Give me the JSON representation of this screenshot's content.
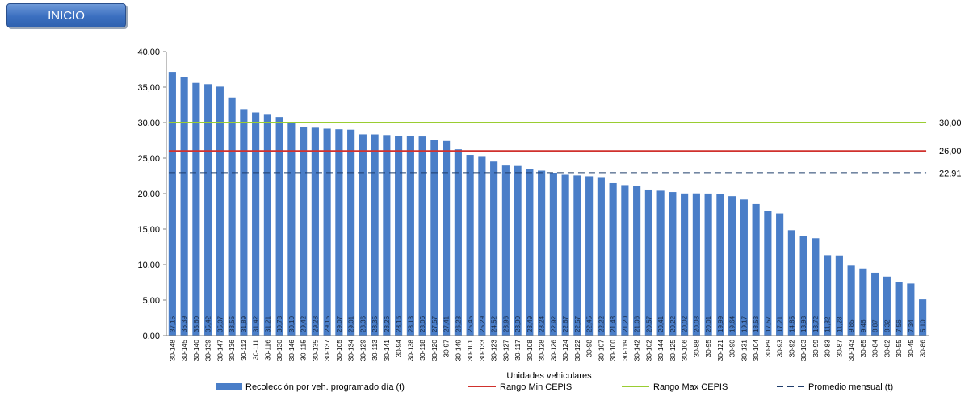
{
  "header": {
    "inicio_label": "INICIO"
  },
  "colors": {
    "bar": "#4a7ec8",
    "min": "#d0312d",
    "max": "#9acd32",
    "avg": "#1f3d6b"
  },
  "chart_data": {
    "type": "bar",
    "xlabel": "Unidades vehiculares",
    "ylim": [
      0,
      40
    ],
    "yticks": [
      "0,00",
      "5,00",
      "10,00",
      "15,00",
      "20,00",
      "25,00",
      "30,00",
      "35,00",
      "40,00"
    ],
    "categories": [
      "30-148",
      "30-145",
      "30-140",
      "30-139",
      "30-147",
      "30-136",
      "30-112",
      "30-111",
      "30-116",
      "30-130",
      "30-146",
      "30-115",
      "30-135",
      "30-137",
      "30-105",
      "30-134",
      "30-129",
      "30-113",
      "30-141",
      "30-94",
      "30-138",
      "30-118",
      "30-120",
      "30-97",
      "30-149",
      "30-101",
      "30-133",
      "30-123",
      "30-127",
      "30-117",
      "30-108",
      "30-128",
      "30-126",
      "30-124",
      "30-122",
      "30-98",
      "30-107",
      "30-100",
      "30-119",
      "30-142",
      "30-102",
      "30-144",
      "30-125",
      "30-106",
      "30-88",
      "30-95",
      "30-121",
      "30-90",
      "30-131",
      "30-104",
      "30-89",
      "30-93",
      "30-92",
      "30-103",
      "30-99",
      "30-83",
      "30-87",
      "30-143",
      "30-85",
      "30-84",
      "30-82",
      "30-55",
      "30-45",
      "30-86"
    ],
    "series": [
      {
        "name": "Recolección por veh. programado día (t)",
        "values": [
          37.15,
          36.39,
          35.6,
          35.42,
          35.07,
          33.55,
          31.89,
          31.42,
          31.21,
          30.78,
          30.1,
          29.42,
          29.28,
          29.15,
          29.07,
          29.01,
          28.36,
          28.35,
          28.26,
          28.16,
          28.13,
          28.06,
          27.57,
          27.41,
          26.23,
          25.45,
          25.29,
          24.52,
          23.96,
          23.9,
          23.49,
          23.24,
          22.92,
          22.67,
          22.57,
          22.45,
          22.22,
          21.48,
          21.2,
          21.06,
          20.57,
          20.41,
          20.22,
          20.02,
          20.03,
          20.01,
          19.99,
          19.64,
          19.17,
          18.53,
          17.57,
          17.21,
          14.85,
          13.98,
          13.72,
          11.32,
          11.28,
          9.85,
          9.46,
          8.87,
          8.32,
          7.56,
          7.34,
          5.1
        ],
        "labels": [
          "37,15",
          "36,39",
          "35,60",
          "35,42",
          "35,07",
          "33,55",
          "31,89",
          "31,42",
          "31,21",
          "30,78",
          "30,10",
          "29,42",
          "29,28",
          "29,15",
          "29,07",
          "29,01",
          "28,36",
          "28,35",
          "28,26",
          "28,16",
          "28,13",
          "28,06",
          "27,57",
          "27,41",
          "26,23",
          "25,45",
          "25,29",
          "24,52",
          "23,96",
          "23,90",
          "23,49",
          "23,24",
          "22,92",
          "22,67",
          "22,57",
          "22,45",
          "22,22",
          "21,48",
          "21,20",
          "21,06",
          "20,57",
          "20,41",
          "20,22",
          "20,02",
          "20,03",
          "20,01",
          "19,99",
          "19,64",
          "19,17",
          "18,53",
          "17,57",
          "17,21",
          "14,85",
          "13,98",
          "13,72",
          "11,32",
          "11,28",
          "9,85",
          "9,46",
          "8,87",
          "8,32",
          "7,56",
          "7,34",
          "5,10"
        ]
      }
    ],
    "reference_lines": [
      {
        "name": "Rango Min CEPIS",
        "value": 26.0,
        "label": "26,00",
        "style": "solid",
        "color": "#d0312d"
      },
      {
        "name": "Rango Max CEPIS",
        "value": 30.0,
        "label": "30,00",
        "style": "solid",
        "color": "#9acd32"
      },
      {
        "name": "Promedio mensual (t)",
        "value": 22.91,
        "label": "22,91",
        "style": "dashed",
        "color": "#1f3d6b"
      }
    ],
    "legend_position": "bottom",
    "grid": false
  }
}
